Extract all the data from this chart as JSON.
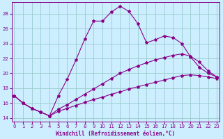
{
  "xlabel": "Windchill (Refroidissement éolien,°C)",
  "bg_color": "#cceeff",
  "line_color": "#880088",
  "grid_color": "#99cccc",
  "x_ticks": [
    0,
    1,
    2,
    3,
    4,
    5,
    6,
    7,
    8,
    9,
    10,
    11,
    12,
    13,
    14,
    15,
    16,
    17,
    18,
    19,
    20,
    21,
    22,
    23
  ],
  "y_ticks": [
    14,
    16,
    18,
    20,
    22,
    24,
    26,
    28
  ],
  "xlim": [
    -0.3,
    23.3
  ],
  "ylim": [
    13.5,
    29.5
  ],
  "series1_y": [
    17.0,
    16.0,
    15.3,
    14.8,
    14.3,
    17.0,
    19.2,
    21.8,
    24.6,
    27.0,
    27.0,
    28.2,
    29.0,
    28.3,
    26.7,
    24.1,
    24.5,
    25.0,
    24.8,
    24.0,
    22.2,
    20.8,
    20.0,
    19.5
  ],
  "series2_y": [
    17.0,
    16.0,
    15.3,
    14.8,
    14.3,
    15.2,
    15.8,
    16.5,
    17.2,
    17.9,
    18.6,
    19.3,
    20.0,
    20.5,
    21.0,
    21.4,
    21.8,
    22.1,
    22.4,
    22.6,
    22.3,
    21.5,
    20.3,
    19.5
  ],
  "series3_y": [
    17.0,
    16.0,
    15.3,
    14.8,
    14.3,
    14.9,
    15.3,
    15.7,
    16.1,
    16.5,
    16.8,
    17.2,
    17.5,
    17.9,
    18.2,
    18.5,
    18.8,
    19.1,
    19.4,
    19.7,
    19.8,
    19.7,
    19.5,
    19.3
  ]
}
